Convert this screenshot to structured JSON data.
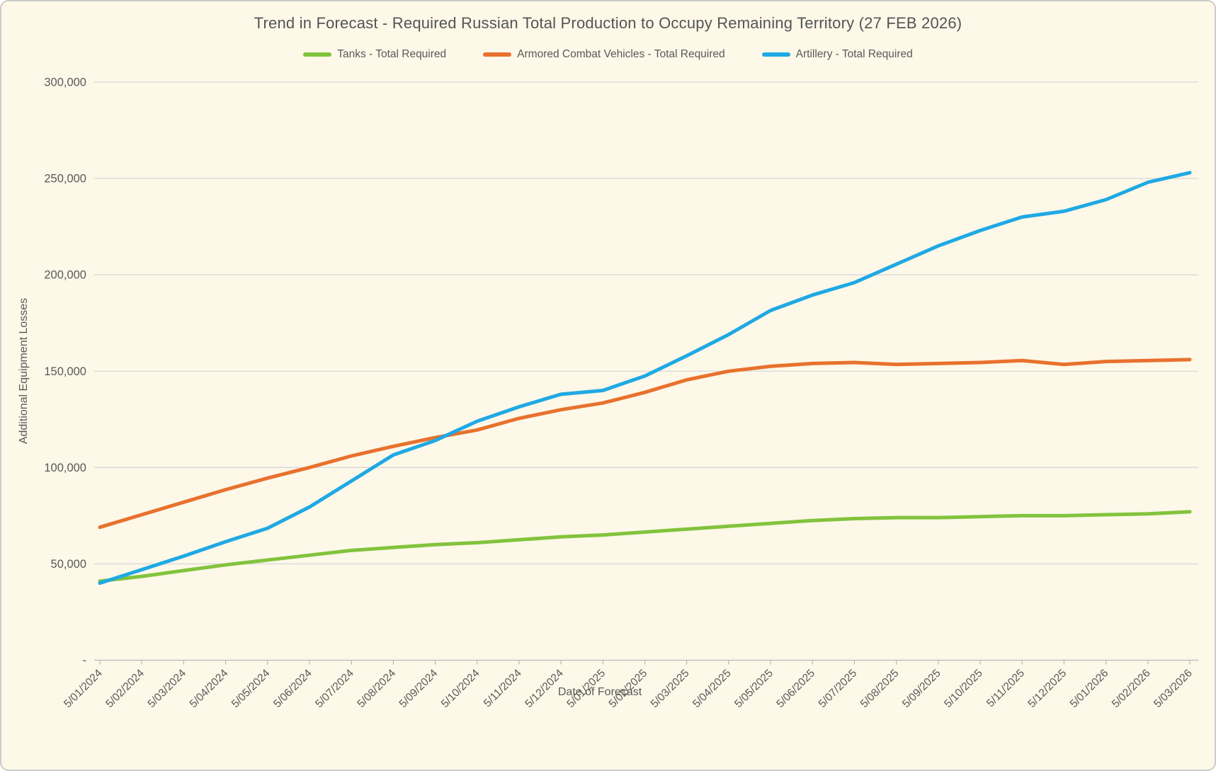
{
  "title": "Trend in Forecast - Required Russian Total Production to Occupy Remaining Territory (27 FEB 2026)",
  "legend": {
    "items": [
      {
        "label": "Tanks - Total Required",
        "color": "#82C33C"
      },
      {
        "label": "Armored Combat Vehicles - Total Required",
        "color": "#E8712D"
      },
      {
        "label": "Artillery - Total Required",
        "color": "#1FA9E4"
      }
    ]
  },
  "y_axis": {
    "title": "Additional Equipment Losses",
    "tick_labels": [
      "-",
      "50,000",
      "100,000",
      "150,000",
      "200,000",
      "250,000",
      "300,000"
    ],
    "min": 0,
    "max": 300000,
    "step": 50000
  },
  "x_axis": {
    "title": "Date of Forecast"
  },
  "chart_data": {
    "type": "line",
    "title": "Trend in Forecast - Required Russian Total Production to Occupy Remaining Territory (27 FEB 2026)",
    "xlabel": "Date of Forecast",
    "ylabel": "Additional Equipment Losses",
    "ylim": [
      0,
      300000
    ],
    "grid": true,
    "legend_position": "top",
    "x": [
      "5/01/2024",
      "5/02/2024",
      "5/03/2024",
      "5/04/2024",
      "5/05/2024",
      "5/06/2024",
      "5/07/2024",
      "5/08/2024",
      "5/09/2024",
      "5/10/2024",
      "5/11/2024",
      "5/12/2024",
      "5/01/2025",
      "5/02/2025",
      "5/03/2025",
      "5/04/2025",
      "5/05/2025",
      "5/06/2025",
      "5/07/2025",
      "5/08/2025",
      "5/09/2025",
      "5/10/2025",
      "5/11/2025",
      "5/12/2025",
      "5/01/2026",
      "5/02/2026",
      "5/03/2026"
    ],
    "series": [
      {
        "name": "Tanks - Total Required",
        "color": "#82C33C",
        "values": [
          41000,
          43500,
          46500,
          49500,
          52000,
          54500,
          57000,
          58500,
          60000,
          61000,
          62500,
          64000,
          65000,
          66500,
          68000,
          69500,
          71000,
          72500,
          73500,
          74000,
          74000,
          74500,
          75000,
          75000,
          75500,
          76000,
          77000
        ]
      },
      {
        "name": "Armored Combat Vehicles - Total Required",
        "color": "#E8712D",
        "values": [
          69000,
          75500,
          82000,
          88500,
          94500,
          100000,
          106000,
          111000,
          115500,
          119500,
          125500,
          130000,
          133500,
          139000,
          145500,
          150000,
          152500,
          154000,
          154500,
          153500,
          154000,
          154500,
          155500,
          153500,
          155000,
          155500,
          156000
        ]
      },
      {
        "name": "Artillery - Total Required",
        "color": "#1FA9E4",
        "values": [
          40000,
          47000,
          54000,
          61500,
          68500,
          79500,
          93000,
          106500,
          114000,
          124000,
          131500,
          138000,
          140000,
          147500,
          158000,
          169000,
          181500,
          189500,
          196000,
          205500,
          215000,
          223000,
          230000,
          233000,
          239000,
          248000,
          253000
        ]
      }
    ]
  },
  "colors": {
    "background": "#FDF8E8",
    "gridline": "#D9D9D9",
    "axis_line": "#B7B7B7",
    "text": "#595959",
    "border": "#CBCBCB"
  }
}
